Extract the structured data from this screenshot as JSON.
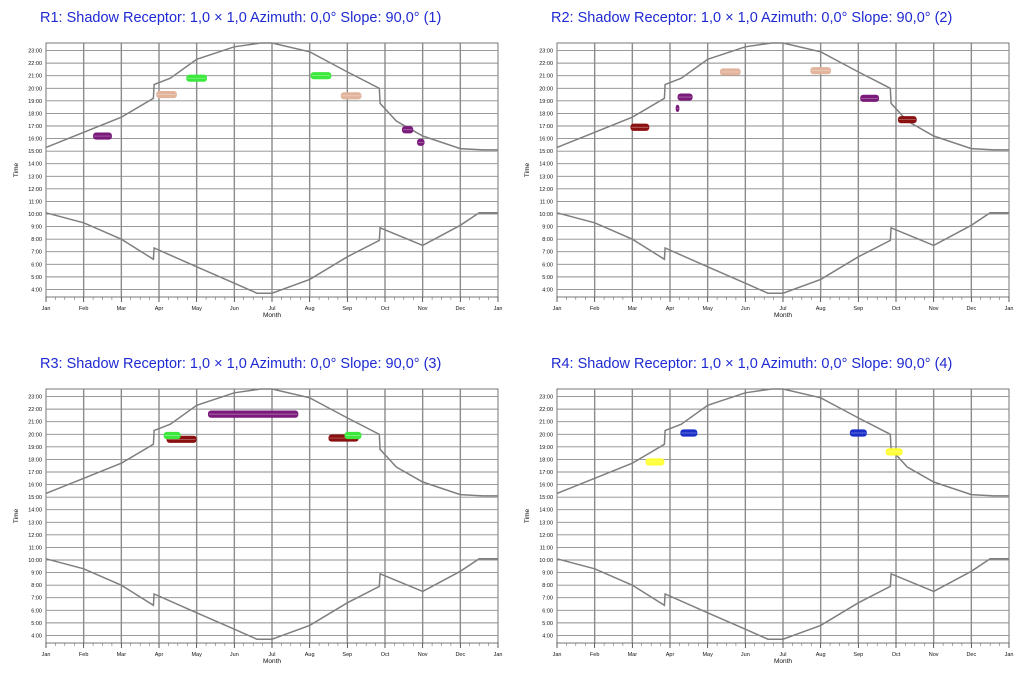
{
  "chart_data": [
    {
      "type": "scatter",
      "title": "R1: Shadow Receptor: 1,0 × 1,0  Azimuth: 0,0°  Slope: 90,0° (1)",
      "xlabel": "Month",
      "ylabel": "Time",
      "xticks": [
        "Jan",
        "Feb",
        "Mar",
        "Apr",
        "May",
        "Jun",
        "Jul",
        "Aug",
        "Sep",
        "Oct",
        "Nov",
        "Dec",
        "Jan"
      ],
      "yticks": [
        "4:00",
        "5:00",
        "6:00",
        "7:00",
        "8:00",
        "9:00",
        "10:00",
        "11:00",
        "12:00",
        "13:00",
        "14:00",
        "15:00",
        "16:00",
        "17:00",
        "18:00",
        "19:00",
        "20:00",
        "21:00",
        "22:00",
        "23:00"
      ],
      "ylim": [
        3.4,
        23.6
      ],
      "grid": true,
      "daylight_curves": {
        "sunset": {
          "x": [
            0,
            1,
            2,
            2.85,
            2.87,
            3.3,
            4,
            5,
            5.7,
            6,
            7,
            7.5,
            8,
            8.85,
            8.87,
            9.3,
            10,
            11,
            11.6,
            12
          ],
          "y": [
            15.3,
            16.5,
            17.7,
            19.2,
            20.3,
            20.8,
            22.3,
            23.3,
            23.6,
            23.6,
            22.9,
            22.1,
            21.3,
            20.0,
            18.8,
            17.4,
            16.2,
            15.2,
            15.1,
            15.1
          ]
        },
        "sunrise": {
          "x": [
            0,
            1,
            2,
            2.85,
            2.87,
            4,
            5,
            5.6,
            6,
            7,
            8,
            8.85,
            8.87,
            10,
            11,
            11.5,
            12
          ],
          "y": [
            10.1,
            9.3,
            8.0,
            6.4,
            7.3,
            5.8,
            4.5,
            3.7,
            3.7,
            4.8,
            6.6,
            7.9,
            8.9,
            7.5,
            9.1,
            10.1,
            10.1
          ]
        }
      },
      "series": [
        {
          "color": "#7a1a7a",
          "points": [
            {
              "x": 1.5,
              "y": 16.2,
              "width": 0.5
            }
          ]
        },
        {
          "color": "#e2b49c",
          "points": [
            {
              "x": 3.2,
              "y": 19.5,
              "width": 0.55
            }
          ]
        },
        {
          "color": "#3de83d",
          "points": [
            {
              "x": 4.0,
              "y": 20.8,
              "width": 0.55
            }
          ]
        },
        {
          "color": "#3de83d",
          "points": [
            {
              "x": 7.3,
              "y": 21.0,
              "width": 0.55
            }
          ]
        },
        {
          "color": "#e2b49c",
          "points": [
            {
              "x": 8.1,
              "y": 19.4,
              "width": 0.55
            }
          ]
        },
        {
          "color": "#7a1a7a",
          "points": [
            {
              "x": 9.6,
              "y": 16.7,
              "width": 0.3
            }
          ]
        },
        {
          "color": "#7a1a7a",
          "points": [
            {
              "x": 9.95,
              "y": 15.7,
              "width": 0.2
            }
          ]
        }
      ]
    },
    {
      "type": "scatter",
      "title": "R2: Shadow Receptor: 1,0 × 1,0  Azimuth: 0,0°  Slope: 90,0° (2)",
      "xlabel": "Month",
      "ylabel": "Time",
      "xticks": [
        "Jan",
        "Feb",
        "Mar",
        "Apr",
        "May",
        "Jun",
        "Jul",
        "Aug",
        "Sep",
        "Oct",
        "Nov",
        "Dec",
        "Jan"
      ],
      "yticks": [
        "4:00",
        "5:00",
        "6:00",
        "7:00",
        "8:00",
        "9:00",
        "10:00",
        "11:00",
        "12:00",
        "13:00",
        "14:00",
        "15:00",
        "16:00",
        "17:00",
        "18:00",
        "19:00",
        "20:00",
        "21:00",
        "22:00",
        "23:00"
      ],
      "ylim": [
        3.4,
        23.6
      ],
      "grid": true,
      "daylight_curves": {
        "sunset": {
          "x": [
            0,
            1,
            2,
            2.85,
            2.87,
            3.3,
            4,
            5,
            5.7,
            6,
            7,
            7.5,
            8,
            8.85,
            8.87,
            9.3,
            10,
            11,
            11.6,
            12
          ],
          "y": [
            15.3,
            16.5,
            17.7,
            19.2,
            20.3,
            20.8,
            22.3,
            23.3,
            23.6,
            23.6,
            22.9,
            22.1,
            21.3,
            20.0,
            18.8,
            17.4,
            16.2,
            15.2,
            15.1,
            15.1
          ]
        },
        "sunrise": {
          "x": [
            0,
            1,
            2,
            2.85,
            2.87,
            4,
            5,
            5.6,
            6,
            7,
            8,
            8.85,
            8.87,
            10,
            11,
            11.5,
            12
          ],
          "y": [
            10.1,
            9.3,
            8.0,
            6.4,
            7.3,
            5.8,
            4.5,
            3.7,
            3.7,
            4.8,
            6.6,
            7.9,
            8.9,
            7.5,
            9.1,
            10.1,
            10.1
          ]
        }
      },
      "series": [
        {
          "color": "#8b1010",
          "points": [
            {
              "x": 2.2,
              "y": 16.9,
              "width": 0.5
            }
          ]
        },
        {
          "color": "#7a1a7a",
          "points": [
            {
              "x": 3.2,
              "y": 18.4,
              "width": 0.1
            }
          ]
        },
        {
          "color": "#7a1a7a",
          "points": [
            {
              "x": 3.4,
              "y": 19.3,
              "width": 0.4
            }
          ]
        },
        {
          "color": "#e2b49c",
          "points": [
            {
              "x": 4.6,
              "y": 21.3,
              "width": 0.55
            }
          ]
        },
        {
          "color": "#e2b49c",
          "points": [
            {
              "x": 7.0,
              "y": 21.4,
              "width": 0.55
            }
          ]
        },
        {
          "color": "#7a1a7a",
          "points": [
            {
              "x": 8.3,
              "y": 19.2,
              "width": 0.5
            }
          ]
        },
        {
          "color": "#8b1010",
          "points": [
            {
              "x": 9.3,
              "y": 17.5,
              "width": 0.5
            }
          ]
        }
      ]
    },
    {
      "type": "scatter",
      "title": "R3: Shadow Receptor: 1,0 × 1,0  Azimuth: 0,0°  Slope: 90,0° (3)",
      "xlabel": "Month",
      "ylabel": "Time",
      "xticks": [
        "Jan",
        "Feb",
        "Mar",
        "Apr",
        "May",
        "Jun",
        "Jul",
        "Aug",
        "Sep",
        "Oct",
        "Nov",
        "Dec",
        "Jan"
      ],
      "yticks": [
        "4:00",
        "5:00",
        "6:00",
        "7:00",
        "8:00",
        "9:00",
        "10:00",
        "11:00",
        "12:00",
        "13:00",
        "14:00",
        "15:00",
        "16:00",
        "17:00",
        "18:00",
        "19:00",
        "20:00",
        "21:00",
        "22:00",
        "23:00"
      ],
      "ylim": [
        3.4,
        23.6
      ],
      "grid": true,
      "daylight_curves": {
        "sunset": {
          "x": [
            0,
            1,
            2,
            2.85,
            2.87,
            3.3,
            4,
            5,
            5.7,
            6,
            7,
            7.5,
            8,
            8.85,
            8.87,
            9.3,
            10,
            11,
            11.6,
            12
          ],
          "y": [
            15.3,
            16.5,
            17.7,
            19.2,
            20.3,
            20.8,
            22.3,
            23.3,
            23.6,
            23.6,
            22.9,
            22.1,
            21.3,
            20.0,
            18.8,
            17.4,
            16.2,
            15.2,
            15.1,
            15.1
          ]
        },
        "sunrise": {
          "x": [
            0,
            1,
            2,
            2.85,
            2.87,
            4,
            5,
            5.6,
            6,
            7,
            8,
            8.85,
            8.87,
            10,
            11,
            11.5,
            12
          ],
          "y": [
            10.1,
            9.3,
            8.0,
            6.4,
            7.3,
            5.8,
            4.5,
            3.7,
            3.7,
            4.8,
            6.6,
            7.9,
            8.9,
            7.5,
            9.1,
            10.1,
            10.1
          ]
        }
      },
      "series": [
        {
          "color": "#7a1a7a",
          "points": [
            {
              "x": 5.5,
              "y": 21.6,
              "width": 2.4
            }
          ]
        },
        {
          "color": "#8b1010",
          "points": [
            {
              "x": 3.6,
              "y": 19.6,
              "width": 0.8
            }
          ]
        },
        {
          "color": "#3de83d",
          "points": [
            {
              "x": 3.35,
              "y": 19.9,
              "width": 0.45
            }
          ]
        },
        {
          "color": "#8b1010",
          "points": [
            {
              "x": 7.9,
              "y": 19.7,
              "width": 0.8
            }
          ]
        },
        {
          "color": "#3de83d",
          "points": [
            {
              "x": 8.15,
              "y": 19.9,
              "width": 0.45
            }
          ]
        }
      ]
    },
    {
      "type": "scatter",
      "title": "R4: Shadow Receptor: 1,0 × 1,0  Azimuth: 0,0°  Slope: 90,0° (4)",
      "xlabel": "Month",
      "ylabel": "Time",
      "xticks": [
        "Jan",
        "Feb",
        "Mar",
        "Apr",
        "May",
        "Jun",
        "Jul",
        "Aug",
        "Sep",
        "Oct",
        "Nov",
        "Dec",
        "Jan"
      ],
      "yticks": [
        "4:00",
        "5:00",
        "6:00",
        "7:00",
        "8:00",
        "9:00",
        "10:00",
        "11:00",
        "12:00",
        "13:00",
        "14:00",
        "15:00",
        "16:00",
        "17:00",
        "18:00",
        "19:00",
        "20:00",
        "21:00",
        "22:00",
        "23:00"
      ],
      "ylim": [
        3.4,
        23.6
      ],
      "grid": true,
      "daylight_curves": {
        "sunset": {
          "x": [
            0,
            1,
            2,
            2.85,
            2.87,
            3.3,
            4,
            5,
            5.7,
            6,
            7,
            7.5,
            8,
            8.85,
            8.87,
            9.3,
            10,
            11,
            11.6,
            12
          ],
          "y": [
            15.3,
            16.5,
            17.7,
            19.2,
            20.3,
            20.8,
            22.3,
            23.3,
            23.6,
            23.6,
            22.9,
            22.1,
            21.3,
            20.0,
            18.8,
            17.4,
            16.2,
            15.2,
            15.1,
            15.1
          ]
        },
        "sunrise": {
          "x": [
            0,
            1,
            2,
            2.85,
            2.87,
            4,
            5,
            5.6,
            6,
            7,
            8,
            8.85,
            8.87,
            10,
            11,
            11.5,
            12
          ],
          "y": [
            10.1,
            9.3,
            8.0,
            6.4,
            7.3,
            5.8,
            4.5,
            3.7,
            3.7,
            4.8,
            6.6,
            7.9,
            8.9,
            7.5,
            9.1,
            10.1,
            10.1
          ]
        }
      },
      "series": [
        {
          "color": "#ffff33",
          "points": [
            {
              "x": 2.6,
              "y": 17.8,
              "width": 0.5
            }
          ]
        },
        {
          "color": "#1a2fc8",
          "points": [
            {
              "x": 3.5,
              "y": 20.1,
              "width": 0.45
            }
          ]
        },
        {
          "color": "#1a2fc8",
          "points": [
            {
              "x": 8.0,
              "y": 20.1,
              "width": 0.45
            }
          ]
        },
        {
          "color": "#ffff33",
          "points": [
            {
              "x": 8.95,
              "y": 18.6,
              "width": 0.45
            }
          ]
        }
      ]
    }
  ]
}
